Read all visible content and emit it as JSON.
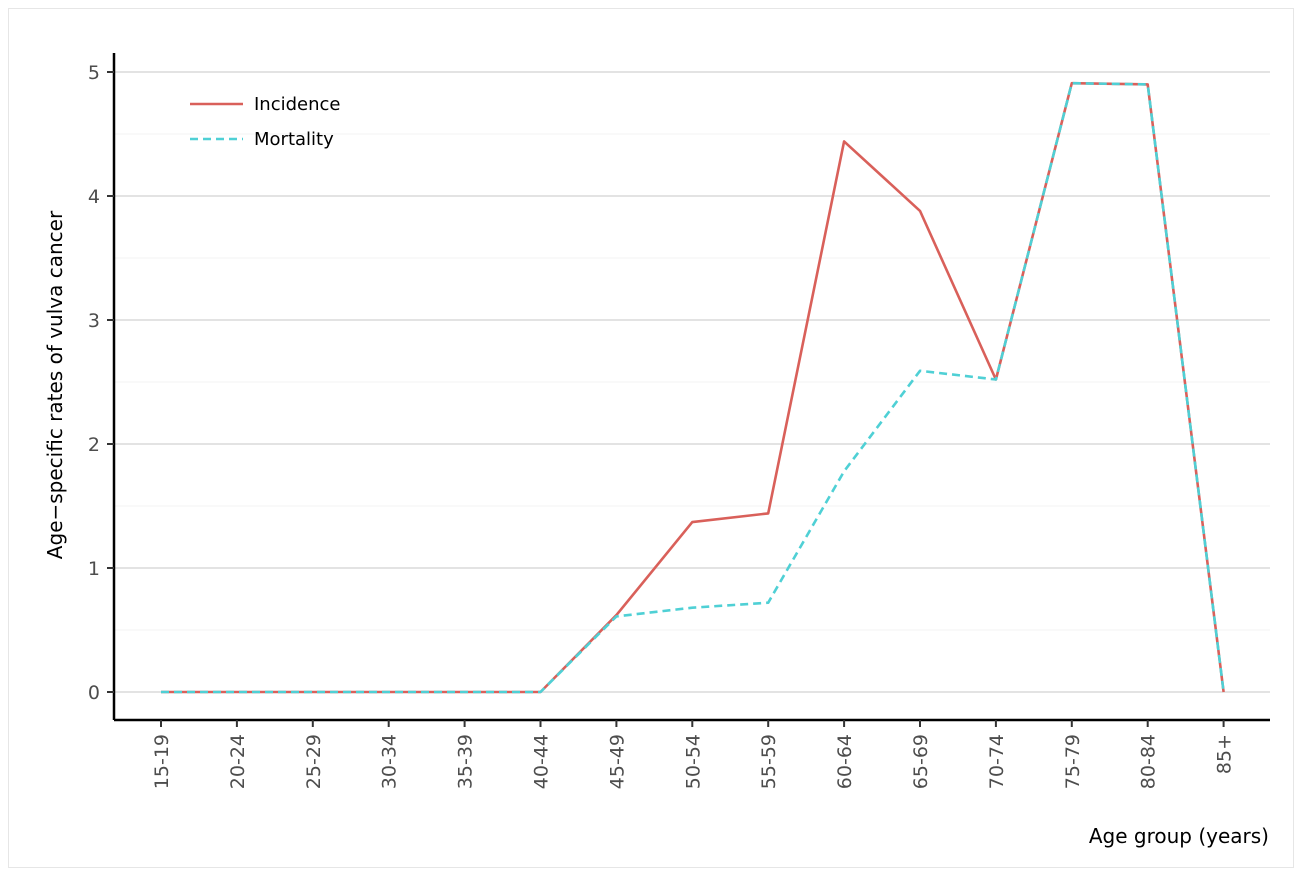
{
  "chart_data": {
    "type": "line",
    "title_fragment_left": "(",
    "title_fragment_right": ")",
    "xlabel": "Age group (years)",
    "ylabel": "Age−specific rates of vulva cancer",
    "categories": [
      "15-19",
      "20-24",
      "25-29",
      "30-34",
      "35-39",
      "40-44",
      "45-49",
      "50-54",
      "55-59",
      "60-64",
      "65-69",
      "70-74",
      "75-79",
      "80-84",
      "85+"
    ],
    "ylim": [
      0,
      5
    ],
    "yticks": [
      "0",
      "1",
      "2",
      "3",
      "4",
      "5"
    ],
    "grid": true,
    "legend_position": "top-left",
    "series": [
      {
        "name": "Incidence",
        "color": "#d9605a",
        "dash": "solid",
        "values": [
          0,
          0,
          0,
          0,
          0,
          0,
          0.62,
          1.37,
          1.44,
          4.44,
          3.88,
          2.52,
          4.91,
          4.9,
          0
        ]
      },
      {
        "name": "Mortality",
        "color": "#4fd0d5",
        "dash": "dashed",
        "values": [
          0,
          0,
          0,
          0,
          0,
          0,
          0.61,
          0.68,
          0.72,
          1.78,
          2.59,
          2.52,
          4.91,
          4.9,
          0
        ]
      }
    ]
  }
}
